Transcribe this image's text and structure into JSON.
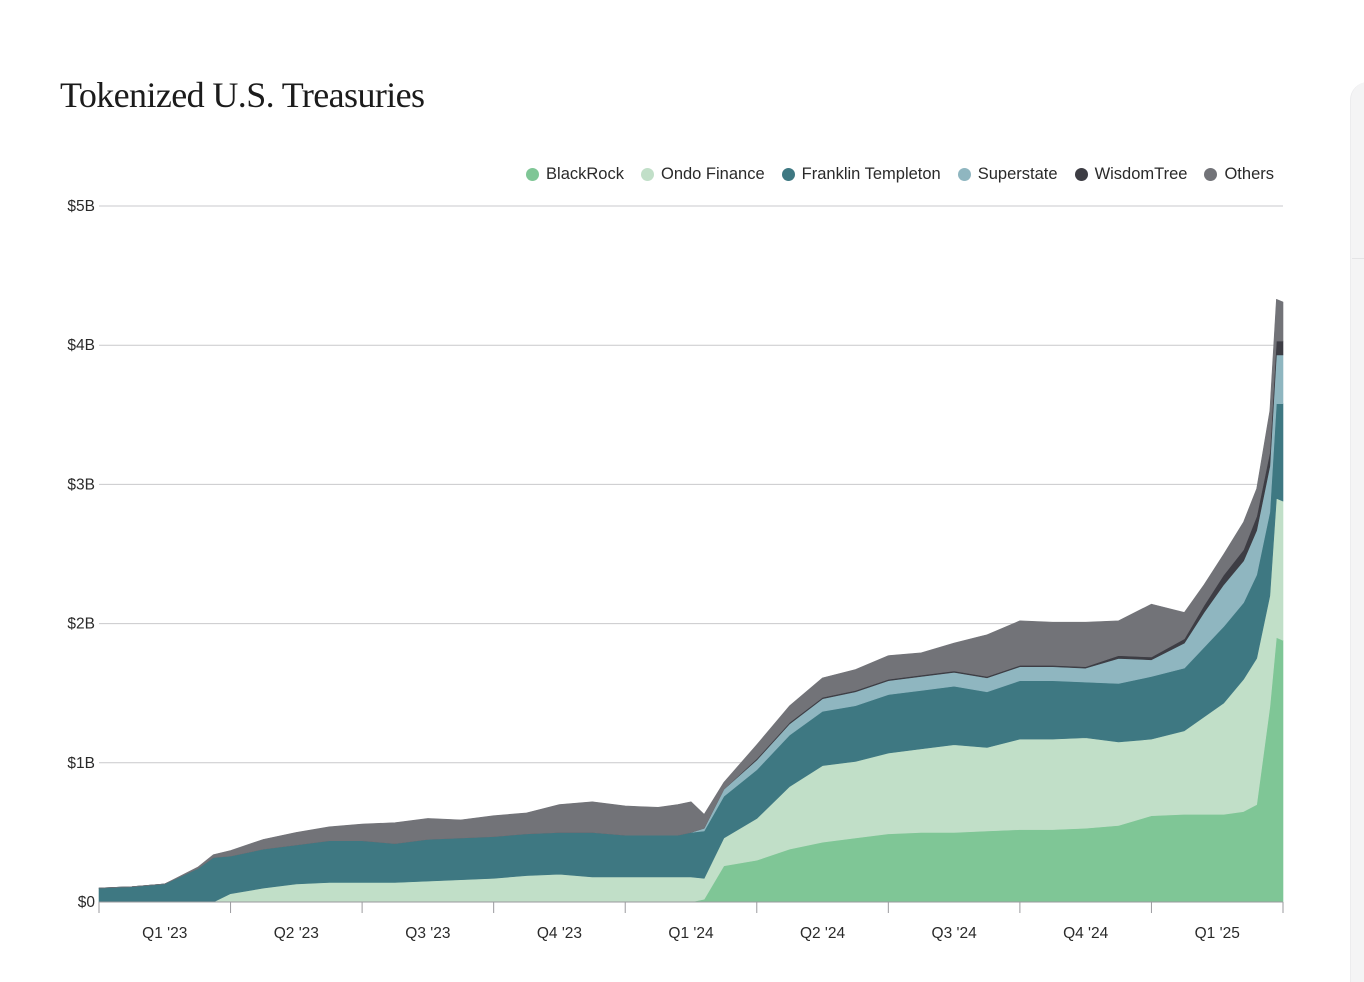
{
  "title": "Tokenized U.S. Treasuries",
  "chart_data": {
    "type": "area",
    "stacked": true,
    "ylim": [
      0,
      5
    ],
    "yticks": [
      {
        "value": 0,
        "label": "$0"
      },
      {
        "value": 1,
        "label": "$1B"
      },
      {
        "value": 2,
        "label": "$2B"
      },
      {
        "value": 3,
        "label": "$3B"
      },
      {
        "value": 4,
        "label": "$4B"
      },
      {
        "value": 5,
        "label": "$5B"
      }
    ],
    "xlim": [
      0,
      9
    ],
    "xticks": [
      {
        "value": 0.5,
        "label": "Q1 '23"
      },
      {
        "value": 1.5,
        "label": "Q2 '23"
      },
      {
        "value": 2.5,
        "label": "Q3 '23"
      },
      {
        "value": 3.5,
        "label": "Q4 '23"
      },
      {
        "value": 4.5,
        "label": "Q1 '24"
      },
      {
        "value": 5.5,
        "label": "Q2 '24"
      },
      {
        "value": 6.5,
        "label": "Q3 '24"
      },
      {
        "value": 7.5,
        "label": "Q4 '24"
      },
      {
        "value": 8.5,
        "label": "Q1 '25"
      }
    ],
    "quarter_boundaries": [
      0,
      1,
      2,
      3,
      4,
      5,
      6,
      7,
      8,
      9
    ],
    "legend_position": "top-right",
    "grid": true,
    "x": [
      0,
      0.25,
      0.5,
      0.75,
      0.87,
      1,
      1.25,
      1.5,
      1.75,
      2,
      2.25,
      2.5,
      2.75,
      3,
      3.25,
      3.5,
      3.75,
      4,
      4.25,
      4.4,
      4.5,
      4.6,
      4.75,
      5,
      5.25,
      5.5,
      5.75,
      6,
      6.25,
      6.5,
      6.75,
      7,
      7.25,
      7.5,
      7.75,
      8,
      8.25,
      8.4,
      8.55,
      8.7,
      8.8,
      8.9,
      8.95,
      9
    ],
    "series": [
      {
        "name": "BlackRock",
        "color": "#7fc696",
        "values": [
          0,
          0,
          0,
          0,
          0,
          0,
          0,
          0,
          0,
          0,
          0,
          0,
          0,
          0,
          0,
          0,
          0,
          0,
          0,
          0,
          0,
          0.02,
          0.26,
          0.3,
          0.38,
          0.43,
          0.46,
          0.49,
          0.5,
          0.5,
          0.51,
          0.52,
          0.52,
          0.53,
          0.55,
          0.62,
          0.63,
          0.63,
          0.63,
          0.65,
          0.7,
          1.4,
          1.9,
          1.88
        ]
      },
      {
        "name": "Ondo Finance",
        "color": "#c1dfc8",
        "values": [
          0,
          0,
          0,
          0,
          0,
          0.06,
          0.1,
          0.13,
          0.14,
          0.14,
          0.14,
          0.15,
          0.16,
          0.17,
          0.19,
          0.2,
          0.18,
          0.18,
          0.18,
          0.18,
          0.18,
          0.15,
          0.2,
          0.3,
          0.45,
          0.55,
          0.55,
          0.58,
          0.6,
          0.63,
          0.6,
          0.65,
          0.65,
          0.65,
          0.6,
          0.55,
          0.6,
          0.7,
          0.8,
          0.95,
          1.05,
          0.8,
          1.0,
          1.0
        ]
      },
      {
        "name": "Franklin Templeton",
        "color": "#3e7882",
        "values": [
          0.1,
          0.11,
          0.13,
          0.24,
          0.32,
          0.27,
          0.28,
          0.28,
          0.3,
          0.3,
          0.28,
          0.3,
          0.3,
          0.3,
          0.3,
          0.3,
          0.32,
          0.3,
          0.3,
          0.3,
          0.32,
          0.34,
          0.3,
          0.35,
          0.37,
          0.39,
          0.4,
          0.42,
          0.42,
          0.42,
          0.4,
          0.42,
          0.42,
          0.4,
          0.42,
          0.45,
          0.45,
          0.5,
          0.55,
          0.55,
          0.6,
          0.6,
          0.68,
          0.7
        ]
      },
      {
        "name": "Superstate",
        "color": "#8fb6c0",
        "values": [
          0,
          0,
          0,
          0,
          0,
          0,
          0,
          0,
          0,
          0,
          0,
          0,
          0,
          0,
          0,
          0,
          0,
          0,
          0,
          0,
          0,
          0.02,
          0.05,
          0.07,
          0.08,
          0.09,
          0.1,
          0.1,
          0.1,
          0.1,
          0.1,
          0.1,
          0.1,
          0.1,
          0.18,
          0.12,
          0.18,
          0.25,
          0.3,
          0.3,
          0.32,
          0.33,
          0.35,
          0.35
        ]
      },
      {
        "name": "WisdomTree",
        "color": "#3d3d44",
        "values": [
          0,
          0,
          0,
          0,
          0,
          0,
          0,
          0,
          0,
          0,
          0,
          0,
          0,
          0,
          0,
          0,
          0,
          0,
          0,
          0,
          0,
          0,
          0,
          0.01,
          0.01,
          0.01,
          0.01,
          0.01,
          0.01,
          0.01,
          0.01,
          0.01,
          0.01,
          0.01,
          0.02,
          0.02,
          0.03,
          0.05,
          0.07,
          0.08,
          0.1,
          0.1,
          0.1,
          0.1
        ]
      },
      {
        "name": "Others",
        "color": "#727378",
        "values": [
          0,
          0,
          0,
          0.01,
          0.02,
          0.04,
          0.07,
          0.09,
          0.1,
          0.12,
          0.15,
          0.15,
          0.13,
          0.15,
          0.15,
          0.2,
          0.22,
          0.21,
          0.2,
          0.22,
          0.22,
          0.1,
          0.05,
          0.1,
          0.12,
          0.14,
          0.15,
          0.17,
          0.16,
          0.2,
          0.3,
          0.32,
          0.31,
          0.32,
          0.25,
          0.38,
          0.19,
          0.15,
          0.15,
          0.2,
          0.2,
          0.3,
          0.3,
          0.28
        ]
      }
    ]
  }
}
